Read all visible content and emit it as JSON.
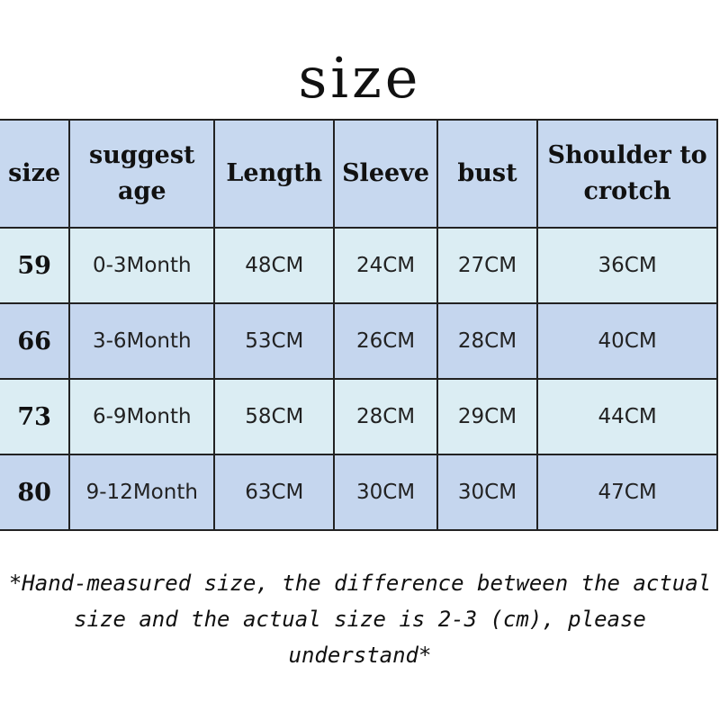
{
  "title": "size",
  "headers": [
    "size",
    "suggest age",
    "Length",
    "Sleeve",
    "bust",
    "Shoulder to crotch"
  ],
  "rows": [
    [
      "59",
      "0-3Month",
      "48CM",
      "24CM",
      "27CM",
      "36CM"
    ],
    [
      "66",
      "3-6Month",
      "53CM",
      "26CM",
      "28CM",
      "40CM"
    ],
    [
      "73",
      "6-9Month",
      "58CM",
      "28CM",
      "29CM",
      "44CM"
    ],
    [
      "80",
      "9-12Month",
      "63CM",
      "30CM",
      "30CM",
      "47CM"
    ]
  ],
  "note": "*Hand-measured size, the difference between the actual size and the actual size is 2-3 (cm), please understand*",
  "colors": {
    "header": "#c7d8ef",
    "row_light": "#dbedf3",
    "row_dark": "#c5d6ee"
  }
}
